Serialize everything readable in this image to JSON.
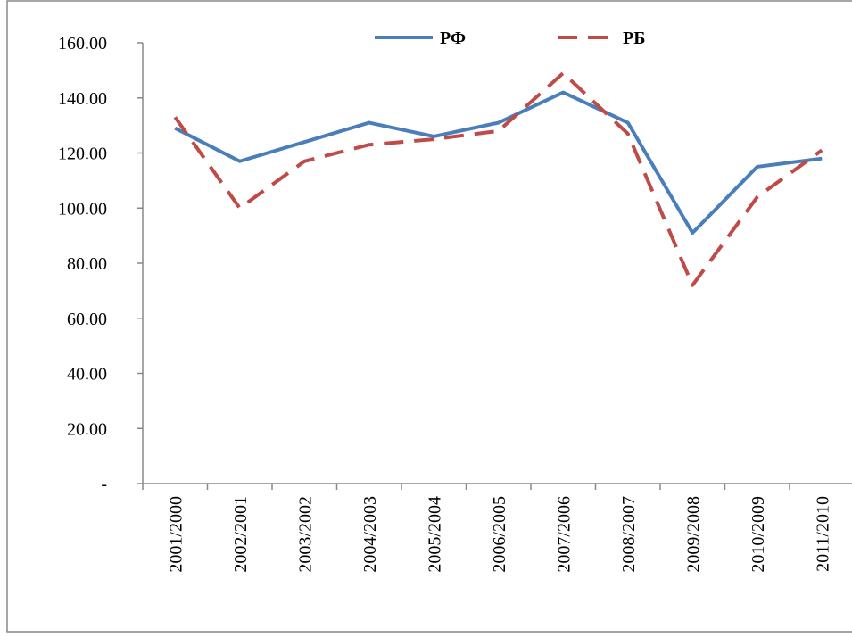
{
  "chart_data": {
    "type": "line",
    "categories": [
      "2001/2000",
      "2002/2001",
      "2003/2002",
      "2004/2003",
      "2005/2004",
      "2006/2005",
      "2007/2006",
      "2008/2007",
      "2009/2008",
      "2010/2009",
      "2011/2010"
    ],
    "series": [
      {
        "name": "РФ",
        "color": "#4a7ebb",
        "dash": false,
        "values": [
          129,
          117,
          124,
          131,
          126,
          131,
          142,
          131,
          91,
          115,
          118
        ]
      },
      {
        "name": "РБ",
        "color": "#be4b48",
        "dash": true,
        "values": [
          133,
          100,
          117,
          123,
          125,
          128,
          149,
          127,
          72,
          104,
          121
        ]
      }
    ],
    "ylim": [
      0,
      160
    ],
    "yticks": [
      {
        "value": 0,
        "label": "-"
      },
      {
        "value": 20,
        "label": "20.00"
      },
      {
        "value": 40,
        "label": "40.00"
      },
      {
        "value": 60,
        "label": "60.00"
      },
      {
        "value": 80,
        "label": "80.00"
      },
      {
        "value": 100,
        "label": "100.00"
      },
      {
        "value": 120,
        "label": "120.00"
      },
      {
        "value": 140,
        "label": "140.00"
      },
      {
        "value": 160,
        "label": "160.00"
      }
    ],
    "legend": "top"
  }
}
